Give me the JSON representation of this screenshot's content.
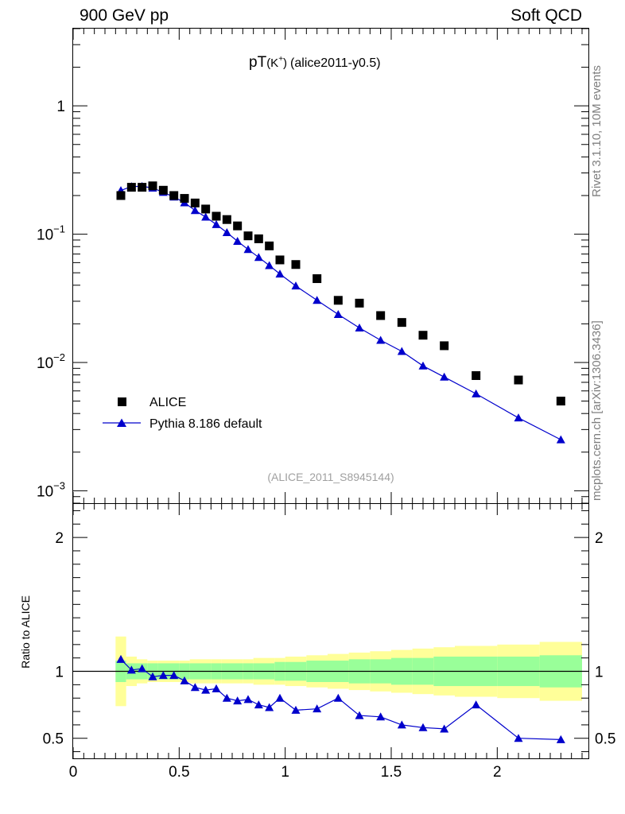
{
  "header": {
    "left": "900 GeV pp",
    "right": "Soft QCD"
  },
  "side": {
    "rivet": "Rivet 3.1.10,  10M events",
    "mcplots": "mcplots.cern.ch [arXiv:1306.3436]"
  },
  "chart_data": [
    {
      "type": "scatter",
      "title_main": "pT",
      "title_sub": "(K",
      "title_sup": "+",
      "title_close": ")",
      "title_tag": "(alice2011-y0.5)",
      "watermark": "(ALICE_2011_S8945144)",
      "yscale": "log",
      "ylim": [
        0.0008,
        4
      ],
      "xlim": [
        0,
        2.43
      ],
      "yticks": [
        {
          "value": 1,
          "base": "1",
          "exp": ""
        },
        {
          "value": 0.1,
          "base": "10",
          "exp": "−1"
        },
        {
          "value": 0.01,
          "base": "10",
          "exp": "−2"
        },
        {
          "value": 0.001,
          "base": "10",
          "exp": "−3"
        }
      ],
      "legend_position": "bottom-left",
      "series": [
        {
          "name": "ALICE",
          "color": "#000000",
          "marker": "square",
          "x": [
            0.225,
            0.275,
            0.325,
            0.375,
            0.425,
            0.475,
            0.525,
            0.575,
            0.625,
            0.675,
            0.725,
            0.775,
            0.825,
            0.875,
            0.925,
            0.975,
            1.05,
            1.15,
            1.25,
            1.35,
            1.45,
            1.55,
            1.65,
            1.75,
            1.9,
            2.1,
            2.3
          ],
          "y": [
            0.2,
            0.232,
            0.232,
            0.238,
            0.22,
            0.2,
            0.19,
            0.175,
            0.157,
            0.138,
            0.13,
            0.116,
            0.097,
            0.092,
            0.081,
            0.063,
            0.058,
            0.045,
            0.0305,
            0.029,
            0.0232,
            0.0205,
            0.0163,
            0.0135,
            0.0079,
            0.0073,
            0.005
          ]
        },
        {
          "name": "Pythia 8.186 default",
          "color": "#0000cc",
          "marker": "triangle",
          "x": [
            0.225,
            0.275,
            0.325,
            0.375,
            0.425,
            0.475,
            0.525,
            0.575,
            0.625,
            0.675,
            0.725,
            0.775,
            0.825,
            0.875,
            0.925,
            0.975,
            1.05,
            1.15,
            1.25,
            1.35,
            1.45,
            1.55,
            1.65,
            1.75,
            1.9,
            2.1,
            2.3
          ],
          "y": [
            0.219,
            0.235,
            0.236,
            0.229,
            0.212,
            0.195,
            0.176,
            0.153,
            0.136,
            0.119,
            0.103,
            0.088,
            0.076,
            0.066,
            0.057,
            0.049,
            0.0395,
            0.0305,
            0.0237,
            0.0186,
            0.0149,
            0.0122,
            0.0094,
            0.0077,
            0.0057,
            0.0037,
            0.0025
          ]
        }
      ]
    },
    {
      "type": "line",
      "ylabel": "Ratio to ALICE",
      "ylim": [
        0.35,
        2.25
      ],
      "xlim": [
        0,
        2.43
      ],
      "yticks": [
        0.5,
        1,
        2
      ],
      "ytick_labels": [
        "0.5",
        "1",
        "2"
      ],
      "xticks": [
        0,
        0.5,
        1,
        1.5,
        2
      ],
      "xtick_labels": [
        "0",
        "0.5",
        "1",
        "1.5",
        "2"
      ],
      "reference_line": 1,
      "bands": {
        "bin_edges": [
          0.2,
          0.25,
          0.3,
          0.35,
          0.4,
          0.45,
          0.5,
          0.55,
          0.6,
          0.65,
          0.7,
          0.75,
          0.8,
          0.85,
          0.9,
          0.95,
          1.0,
          1.1,
          1.2,
          1.3,
          1.4,
          1.5,
          1.6,
          1.7,
          1.8,
          2.0,
          2.2,
          2.4
        ],
        "outer_halfwidth": [
          0.26,
          0.11,
          0.09,
          0.08,
          0.08,
          0.08,
          0.08,
          0.09,
          0.09,
          0.09,
          0.09,
          0.09,
          0.09,
          0.1,
          0.1,
          0.1,
          0.11,
          0.12,
          0.13,
          0.14,
          0.15,
          0.16,
          0.17,
          0.18,
          0.19,
          0.2,
          0.22
        ],
        "inner_halfwidth": [
          0.08,
          0.06,
          0.06,
          0.06,
          0.06,
          0.06,
          0.06,
          0.06,
          0.06,
          0.06,
          0.06,
          0.06,
          0.06,
          0.06,
          0.06,
          0.07,
          0.07,
          0.08,
          0.08,
          0.09,
          0.09,
          0.1,
          0.1,
          0.11,
          0.11,
          0.11,
          0.12
        ],
        "outer_color": "#ffff99",
        "inner_color": "#99ff99"
      },
      "series": [
        {
          "name": "Pythia 8.186 default",
          "color": "#0000cc",
          "marker": "triangle",
          "x": [
            0.225,
            0.275,
            0.325,
            0.375,
            0.425,
            0.475,
            0.525,
            0.575,
            0.625,
            0.675,
            0.725,
            0.775,
            0.825,
            0.875,
            0.925,
            0.975,
            1.05,
            1.15,
            1.25,
            1.35,
            1.45,
            1.55,
            1.65,
            1.75,
            1.9,
            2.1,
            2.3
          ],
          "y": [
            1.09,
            1.01,
            1.02,
            0.96,
            0.97,
            0.97,
            0.93,
            0.88,
            0.86,
            0.87,
            0.8,
            0.78,
            0.79,
            0.75,
            0.73,
            0.8,
            0.71,
            0.72,
            0.8,
            0.67,
            0.66,
            0.6,
            0.58,
            0.57,
            0.75,
            0.5,
            0.49
          ]
        }
      ]
    }
  ]
}
